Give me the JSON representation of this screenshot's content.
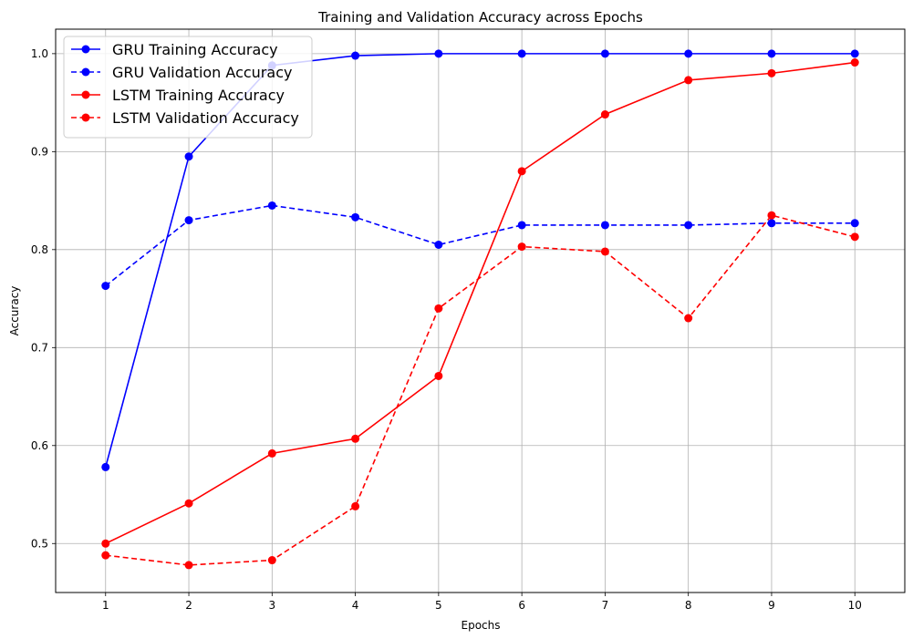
{
  "chart_data": {
    "type": "line",
    "title": "Training and Validation Accuracy across Epochs",
    "xlabel": "Epochs",
    "ylabel": "Accuracy",
    "x": [
      1,
      2,
      3,
      4,
      5,
      6,
      7,
      8,
      9,
      10
    ],
    "xlim": [
      0.4,
      10.6
    ],
    "ylim": [
      0.45,
      1.025
    ],
    "yticks": [
      0.5,
      0.6,
      0.7,
      0.8,
      0.9,
      1.0
    ],
    "ytick_labels": [
      "0.5",
      "0.6",
      "0.7",
      "0.8",
      "0.9",
      "1.0"
    ],
    "xtick_labels": [
      "1",
      "2",
      "3",
      "4",
      "5",
      "6",
      "7",
      "8",
      "9",
      "10"
    ],
    "grid": true,
    "legend_position": "top-left",
    "series": [
      {
        "name": "GRU Training Accuracy",
        "color": "#0000ff",
        "dash": "solid",
        "marker": "circle",
        "values": [
          0.578,
          0.895,
          0.988,
          0.998,
          1.0,
          1.0,
          1.0,
          1.0,
          1.0,
          1.0
        ]
      },
      {
        "name": "GRU Validation Accuracy",
        "color": "#0000ff",
        "dash": "dashed",
        "marker": "circle",
        "values": [
          0.763,
          0.83,
          0.845,
          0.833,
          0.805,
          0.825,
          0.825,
          0.825,
          0.827,
          0.827
        ]
      },
      {
        "name": "LSTM Training Accuracy",
        "color": "#ff0000",
        "dash": "solid",
        "marker": "circle",
        "values": [
          0.5,
          0.541,
          0.592,
          0.607,
          0.671,
          0.88,
          0.938,
          0.973,
          0.98,
          0.991
        ]
      },
      {
        "name": "LSTM Validation Accuracy",
        "color": "#ff0000",
        "dash": "dashed",
        "marker": "circle",
        "values": [
          0.488,
          0.478,
          0.483,
          0.538,
          0.74,
          0.803,
          0.798,
          0.73,
          0.835,
          0.813
        ]
      }
    ]
  }
}
